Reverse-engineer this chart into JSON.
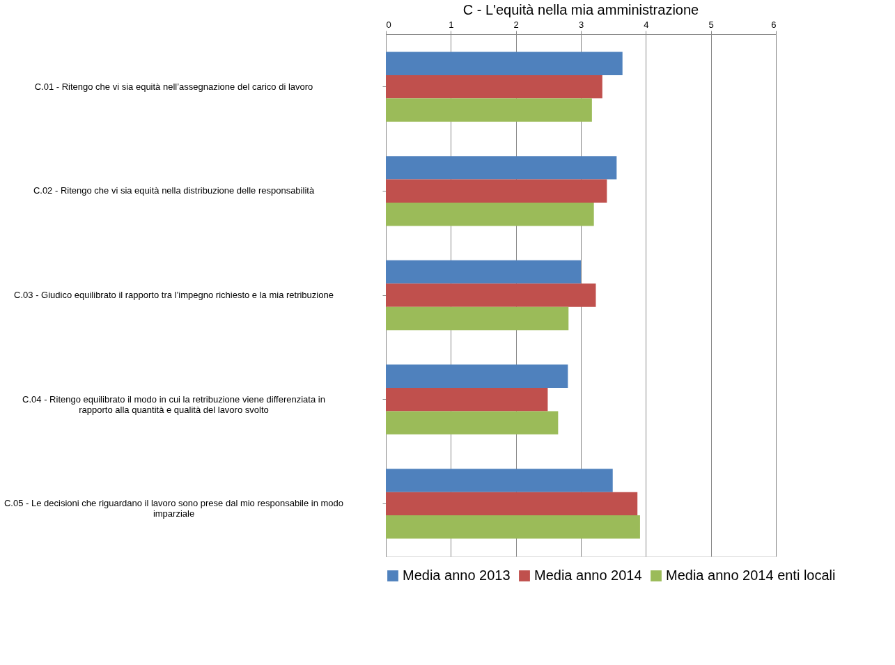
{
  "chart_data": {
    "type": "bar",
    "orientation": "horizontal",
    "title": "C - L'equità nella mia amministrazione",
    "categories": [
      "C.01 - Ritengo che vi sia equità nell’assegnazione del carico di lavoro",
      "C.02 - Ritengo che vi sia equità nella distribuzione delle responsabilità",
      "C.03 - Giudico equilibrato il rapporto tra l’impegno richiesto e la mia retribuzione",
      "C.04 - Ritengo equilibrato il modo in cui la retribuzione viene differenziata in rapporto alla quantità e qualità del lavoro svolto",
      "C.05 - Le decisioni che riguardano il lavoro sono prese dal mio responsabile in modo imparziale"
    ],
    "series": [
      {
        "name": "Media anno 2013",
        "color": "#4f81bd",
        "values": [
          3.64,
          3.55,
          3.0,
          2.8,
          3.49
        ]
      },
      {
        "name": "Media anno 2014",
        "color": "#c0504d",
        "values": [
          3.33,
          3.4,
          3.23,
          2.49,
          3.87
        ]
      },
      {
        "name": "Media anno 2014 enti locali",
        "color": "#9bbb59",
        "values": [
          3.17,
          3.2,
          2.81,
          2.65,
          3.91
        ]
      }
    ],
    "xlim": [
      0,
      6
    ],
    "xticks": [
      0,
      1,
      2,
      3,
      4,
      5,
      6
    ],
    "grid": "x",
    "legend": "bottom"
  }
}
